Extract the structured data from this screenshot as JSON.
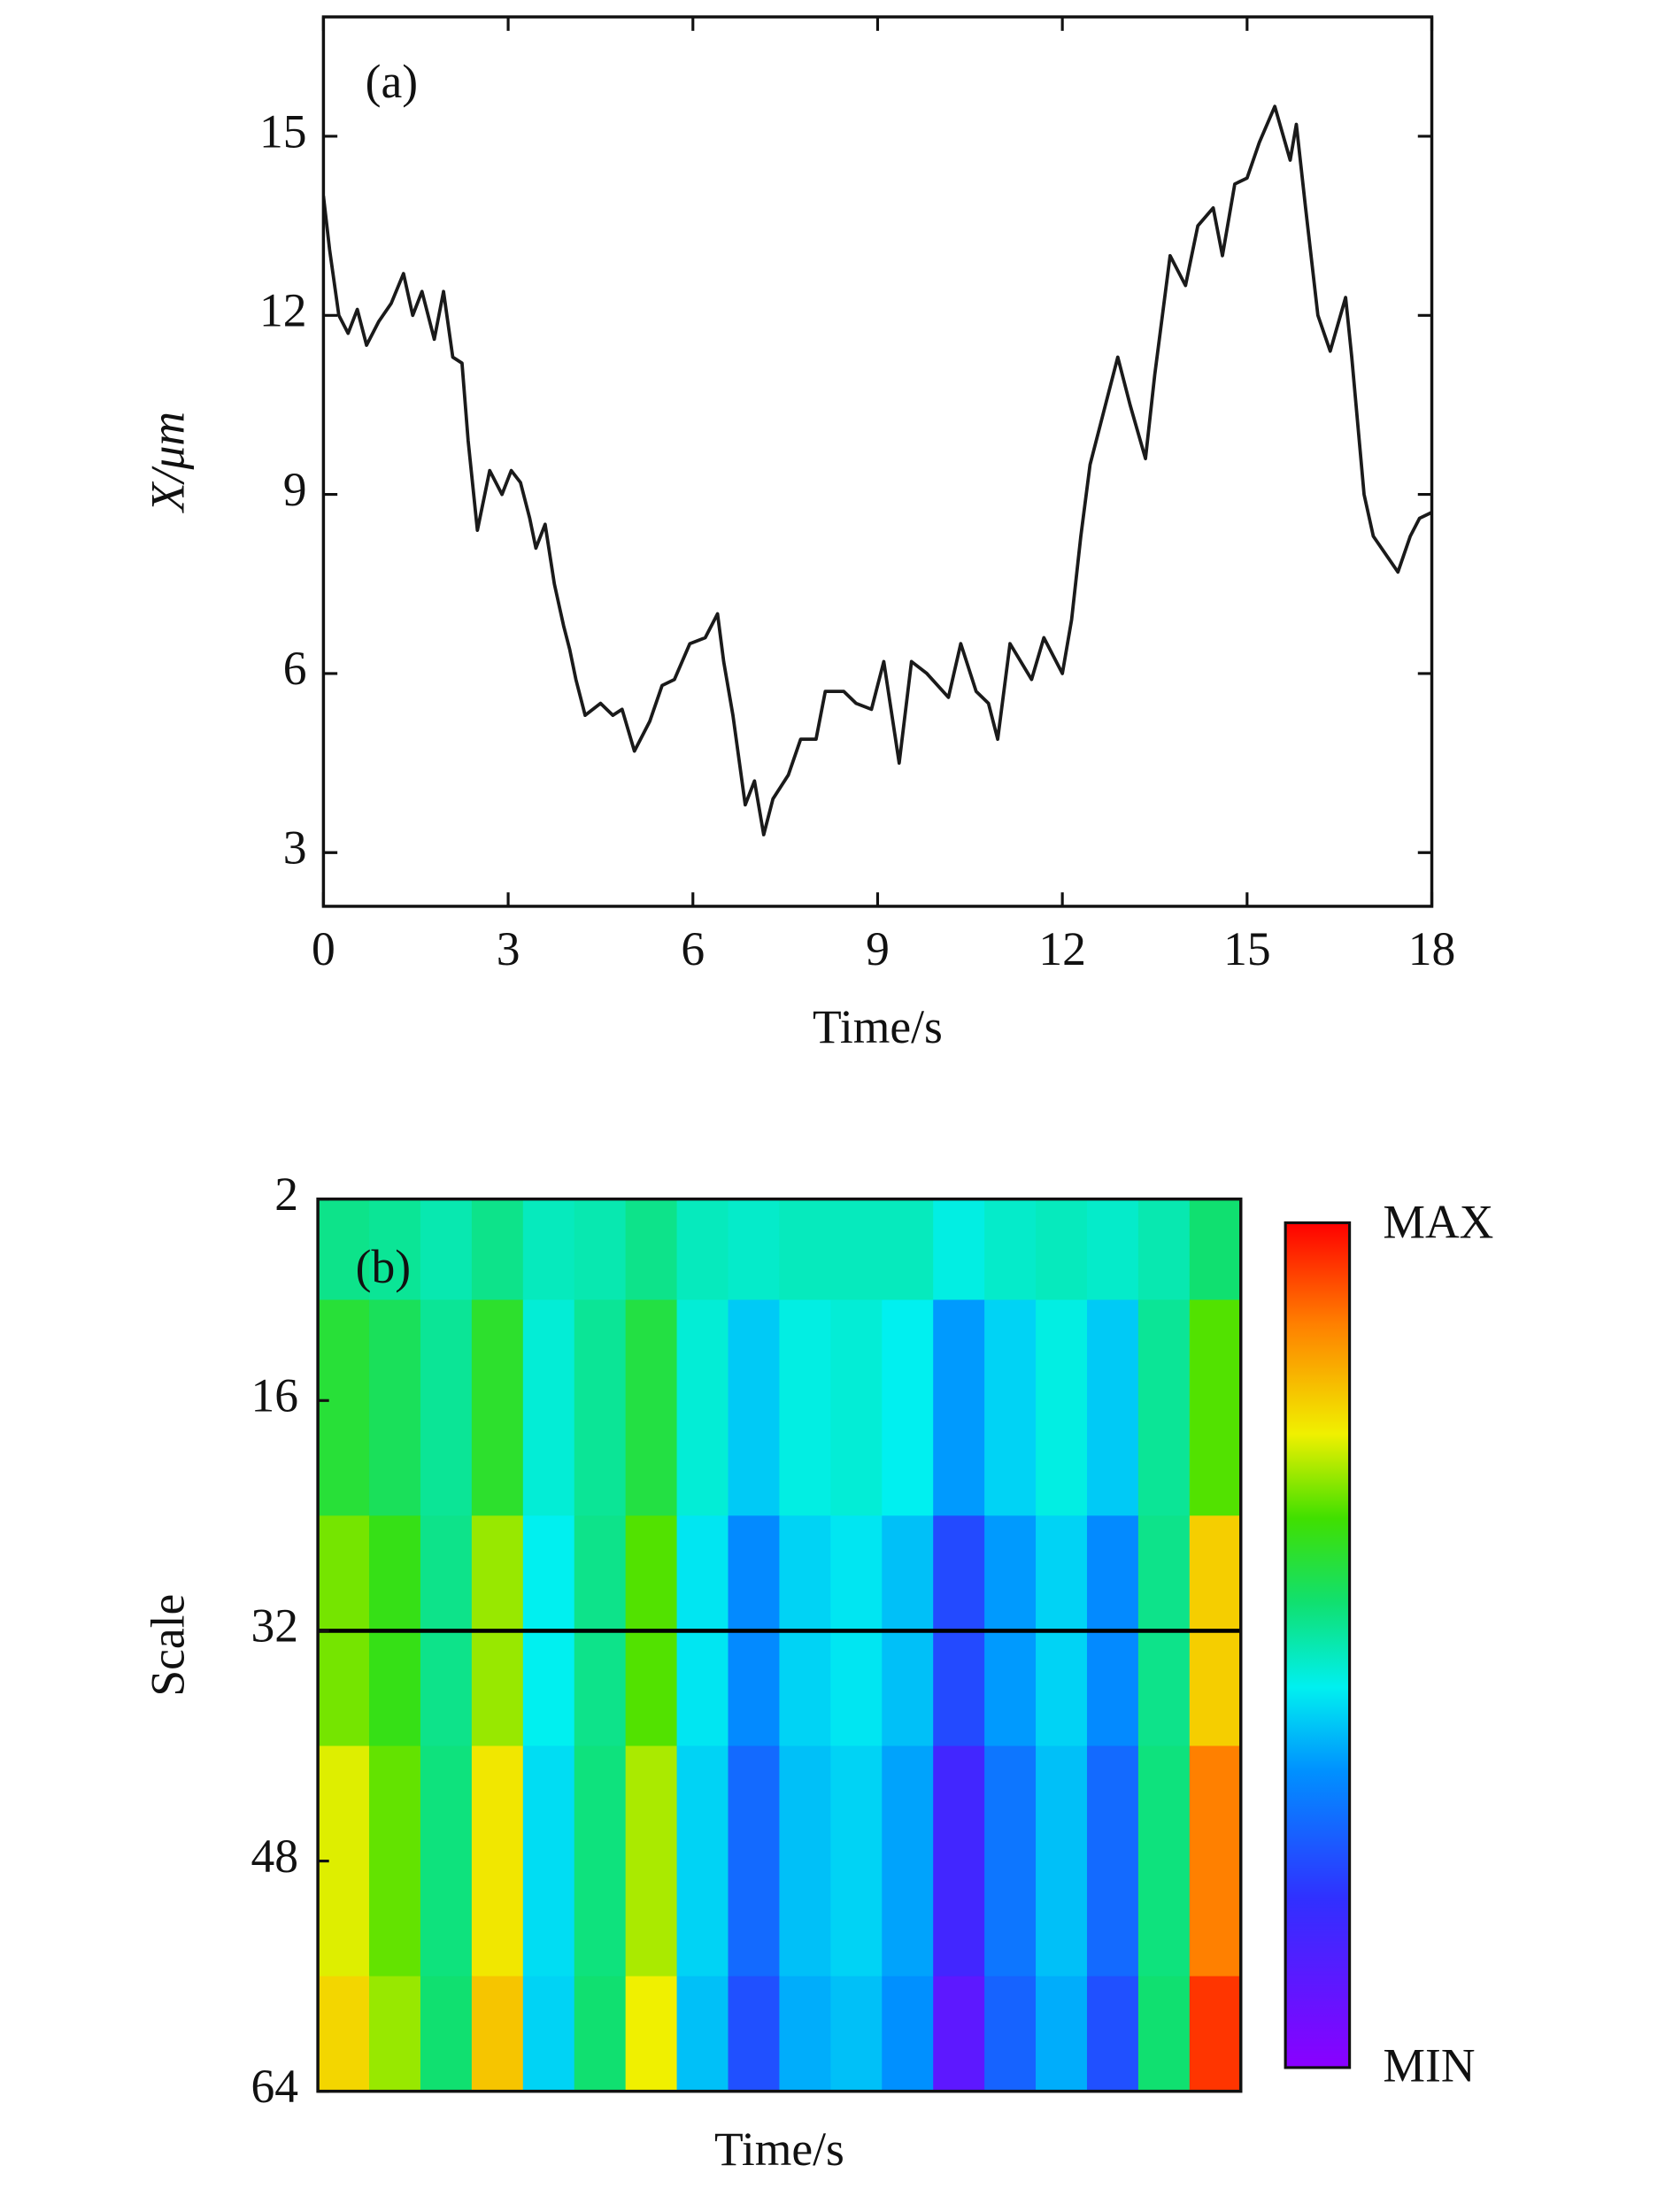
{
  "chart_data": [
    {
      "type": "line",
      "panel_label": "(a)",
      "x_label": "Time/s",
      "y_label": "X/μm",
      "color": "#1a1a1a",
      "x": [
        0,
        0.1,
        0.25,
        0.4,
        0.55,
        0.7,
        0.9,
        1.1,
        1.3,
        1.45,
        1.6,
        1.8,
        1.95,
        2.1,
        2.25,
        2.35,
        2.5,
        2.7,
        2.9,
        3.05,
        3.2,
        3.35,
        3.45,
        3.6,
        3.75,
        3.9,
        4.0,
        4.1,
        4.25,
        4.5,
        4.7,
        4.85,
        5.05,
        5.3,
        5.5,
        5.7,
        5.95,
        6.2,
        6.4,
        6.5,
        6.65,
        6.85,
        7.0,
        7.15,
        7.3,
        7.55,
        7.75,
        8.0,
        8.15,
        8.45,
        8.65,
        8.9,
        9.1,
        9.35,
        9.55,
        9.8,
        10.15,
        10.35,
        10.6,
        10.8,
        10.95,
        11.15,
        11.5,
        11.7,
        12.0,
        12.15,
        12.3,
        12.45,
        12.65,
        12.9,
        13.1,
        13.35,
        13.5,
        13.75,
        14.0,
        14.2,
        14.45,
        14.6,
        14.8,
        15.0,
        15.2,
        15.45,
        15.7,
        15.8,
        15.95,
        16.15,
        16.35,
        16.6,
        16.7,
        16.9,
        17.05,
        17.25,
        17.45,
        17.65,
        17.8,
        18.0
      ],
      "values": [
        14.0,
        13.1,
        12.0,
        11.7,
        12.1,
        11.5,
        11.9,
        12.2,
        12.7,
        12.0,
        12.4,
        11.6,
        12.4,
        11.3,
        11.2,
        9.9,
        8.4,
        9.4,
        9.0,
        9.4,
        9.2,
        8.6,
        8.1,
        8.5,
        7.5,
        6.8,
        6.4,
        5.9,
        5.3,
        5.5,
        5.3,
        5.4,
        4.7,
        5.2,
        5.8,
        5.9,
        6.5,
        6.6,
        7.0,
        6.2,
        5.3,
        3.8,
        4.2,
        3.3,
        3.9,
        4.3,
        4.9,
        4.9,
        5.7,
        5.7,
        5.5,
        5.4,
        6.2,
        4.5,
        6.2,
        6.0,
        5.6,
        6.5,
        5.7,
        5.5,
        4.9,
        6.5,
        5.9,
        6.6,
        6.0,
        6.9,
        8.3,
        9.5,
        10.3,
        11.3,
        10.5,
        9.6,
        11.0,
        13.0,
        12.5,
        13.5,
        13.8,
        13.0,
        14.2,
        14.3,
        14.9,
        15.5,
        14.6,
        15.2,
        13.8,
        12.0,
        11.4,
        12.3,
        11.3,
        9.0,
        8.3,
        8.0,
        7.7,
        8.3,
        8.6,
        8.7
      ],
      "xlim": [
        0,
        18
      ],
      "xticks": [
        0,
        3,
        6,
        9,
        12,
        15,
        18
      ],
      "ylim": [
        2.1,
        17
      ],
      "yticks": [
        3,
        6,
        9,
        12,
        15
      ]
    },
    {
      "type": "heatmap",
      "panel_label": "(b)",
      "x_label": "Time/s",
      "y_label": "Scale",
      "x": [
        0.5,
        1.5,
        2.5,
        3.5,
        4.5,
        5.5,
        6.5,
        7.5,
        8.5,
        9.5,
        10.5,
        11.5,
        12.5,
        13.5,
        14.5,
        15.5,
        16.5,
        17.5
      ],
      "xlim": [
        0,
        18
      ],
      "y": [
        2,
        16,
        32,
        48,
        64
      ],
      "ylim": [
        2,
        64
      ],
      "yticks": [
        2,
        16,
        32,
        48,
        64
      ],
      "y_inverted": true,
      "values": [
        [
          0.53,
          0.52,
          0.5,
          0.53,
          0.49,
          0.5,
          0.53,
          0.49,
          0.48,
          0.49,
          0.49,
          0.49,
          0.46,
          0.48,
          0.49,
          0.48,
          0.5,
          0.55
        ],
        [
          0.6,
          0.57,
          0.52,
          0.61,
          0.47,
          0.52,
          0.59,
          0.47,
          0.41,
          0.46,
          0.47,
          0.45,
          0.36,
          0.42,
          0.46,
          0.41,
          0.52,
          0.66
        ],
        [
          0.68,
          0.63,
          0.53,
          0.7,
          0.45,
          0.53,
          0.66,
          0.44,
          0.34,
          0.42,
          0.44,
          0.4,
          0.24,
          0.36,
          0.42,
          0.34,
          0.53,
          0.79
        ],
        [
          0.74,
          0.67,
          0.54,
          0.76,
          0.43,
          0.54,
          0.71,
          0.42,
          0.29,
          0.4,
          0.42,
          0.37,
          0.16,
          0.31,
          0.4,
          0.29,
          0.54,
          0.88
        ],
        [
          0.78,
          0.7,
          0.55,
          0.8,
          0.42,
          0.55,
          0.75,
          0.4,
          0.25,
          0.38,
          0.4,
          0.35,
          0.1,
          0.28,
          0.38,
          0.25,
          0.55,
          0.95
        ]
      ],
      "zlim": [
        0,
        1
      ],
      "hline": 32,
      "colorbar_labels": [
        "MAX",
        "MIN"
      ]
    }
  ]
}
